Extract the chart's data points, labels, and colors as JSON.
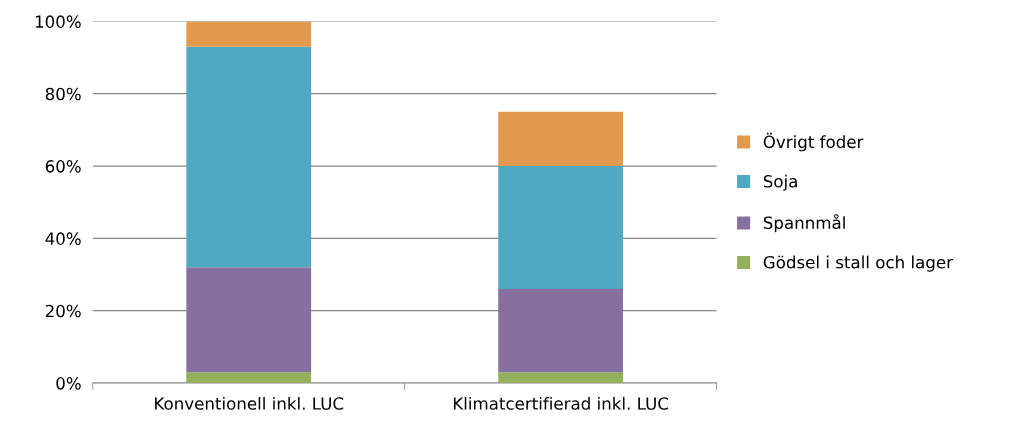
{
  "chart_data": {
    "type": "bar",
    "stacked": true,
    "categories": [
      "Konventionell inkl. LUC",
      "Klimatcertifierad inkl. LUC"
    ],
    "series": [
      {
        "name": "Gödsel i stall och lager",
        "color": "#93b05a",
        "values": [
          3,
          3
        ]
      },
      {
        "name": "Spannmål",
        "color": "#876fa0",
        "values": [
          29,
          23
        ]
      },
      {
        "name": "Soja",
        "color": "#4faac1",
        "values": [
          61,
          34
        ]
      },
      {
        "name": "Övrigt foder",
        "color": "#e49a4e",
        "values": [
          7,
          15
        ]
      }
    ],
    "ylim": [
      0,
      100
    ],
    "yticks": [
      {
        "value": 0,
        "label": "0%"
      },
      {
        "value": 20,
        "label": "20%"
      },
      {
        "value": 40,
        "label": "40%"
      },
      {
        "value": 60,
        "label": "60%"
      },
      {
        "value": 80,
        "label": "80%"
      },
      {
        "value": 100,
        "label": "100%"
      }
    ],
    "grid": "y",
    "legend": "right"
  }
}
